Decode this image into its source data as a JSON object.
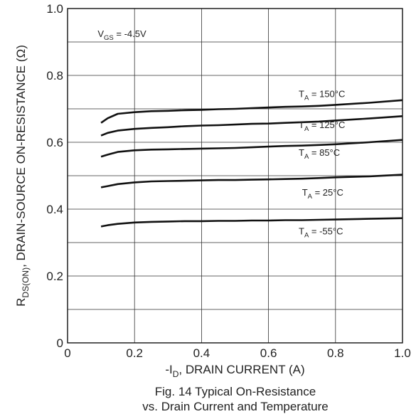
{
  "chart_data": {
    "type": "line",
    "xlim": [
      0,
      1.0
    ],
    "ylim": [
      0,
      1.0
    ],
    "grid": true,
    "x_ticks": [
      "0",
      "0.2",
      "0.4",
      "0.6",
      "0.8",
      "1.0"
    ],
    "y_ticks": [
      "0",
      "0.2",
      "0.4",
      "0.6",
      "0.8",
      "1.0"
    ],
    "xlabel": {
      "pre": "-I",
      "sub": "D",
      "post": ", DRAIN CURRENT (A)"
    },
    "ylabel": {
      "pre": "R",
      "sub": "DS(ON)",
      "post": ", DRAIN-SOURCE ON-RESISTANCE (Ω)"
    },
    "annotation": {
      "pre": "V",
      "sub": "GS",
      "post": " = -4.5V"
    },
    "caption": [
      "Fig. 14 Typical On-Resistance",
      "vs. Drain Current and Temperature"
    ],
    "series": [
      {
        "name": "150°C",
        "label_pre": "T",
        "label_sub": "A",
        "label_post": " = 150°C",
        "x": [
          0.1,
          0.12,
          0.15,
          0.2,
          0.25,
          0.3,
          0.35,
          0.4,
          0.45,
          0.5,
          0.55,
          0.6,
          0.65,
          0.7,
          0.75,
          0.8,
          0.9,
          1.0
        ],
        "y": [
          0.658,
          0.672,
          0.685,
          0.69,
          0.693,
          0.694,
          0.696,
          0.697,
          0.699,
          0.7,
          0.702,
          0.704,
          0.706,
          0.707,
          0.709,
          0.712,
          0.718,
          0.726
        ]
      },
      {
        "name": "125°C",
        "label_pre": "T",
        "label_sub": "A",
        "label_post": " = 125°C",
        "x": [
          0.1,
          0.12,
          0.15,
          0.2,
          0.25,
          0.3,
          0.35,
          0.4,
          0.45,
          0.5,
          0.55,
          0.6,
          0.65,
          0.7,
          0.75,
          0.8,
          0.9,
          1.0
        ],
        "y": [
          0.62,
          0.628,
          0.635,
          0.64,
          0.643,
          0.645,
          0.648,
          0.65,
          0.651,
          0.653,
          0.655,
          0.656,
          0.658,
          0.66,
          0.662,
          0.665,
          0.671,
          0.678
        ]
      },
      {
        "name": "85°C",
        "label_pre": "T",
        "label_sub": "A",
        "label_post": " = 85°C",
        "x": [
          0.1,
          0.12,
          0.15,
          0.2,
          0.25,
          0.3,
          0.35,
          0.4,
          0.45,
          0.5,
          0.55,
          0.6,
          0.65,
          0.7,
          0.75,
          0.8,
          0.9,
          1.0
        ],
        "y": [
          0.557,
          0.563,
          0.571,
          0.576,
          0.578,
          0.579,
          0.58,
          0.581,
          0.582,
          0.583,
          0.585,
          0.587,
          0.589,
          0.59,
          0.592,
          0.594,
          0.6,
          0.607
        ]
      },
      {
        "name": "25°C",
        "label_pre": "T",
        "label_sub": "A",
        "label_post": " = 25°C",
        "x": [
          0.1,
          0.12,
          0.15,
          0.2,
          0.25,
          0.3,
          0.35,
          0.4,
          0.45,
          0.5,
          0.55,
          0.6,
          0.65,
          0.7,
          0.75,
          0.8,
          0.9,
          1.0
        ],
        "y": [
          0.465,
          0.469,
          0.475,
          0.48,
          0.483,
          0.484,
          0.485,
          0.486,
          0.487,
          0.487,
          0.488,
          0.489,
          0.49,
          0.491,
          0.493,
          0.495,
          0.498,
          0.503
        ]
      },
      {
        "name": "-55°C",
        "label_pre": "T",
        "label_sub": "A",
        "label_post": " = -55°C",
        "x": [
          0.1,
          0.12,
          0.15,
          0.2,
          0.25,
          0.3,
          0.35,
          0.4,
          0.45,
          0.5,
          0.55,
          0.6,
          0.65,
          0.7,
          0.75,
          0.8,
          0.9,
          1.0
        ],
        "y": [
          0.348,
          0.352,
          0.356,
          0.36,
          0.362,
          0.363,
          0.364,
          0.364,
          0.365,
          0.365,
          0.366,
          0.366,
          0.367,
          0.367,
          0.368,
          0.369,
          0.371,
          0.373
        ]
      }
    ]
  }
}
